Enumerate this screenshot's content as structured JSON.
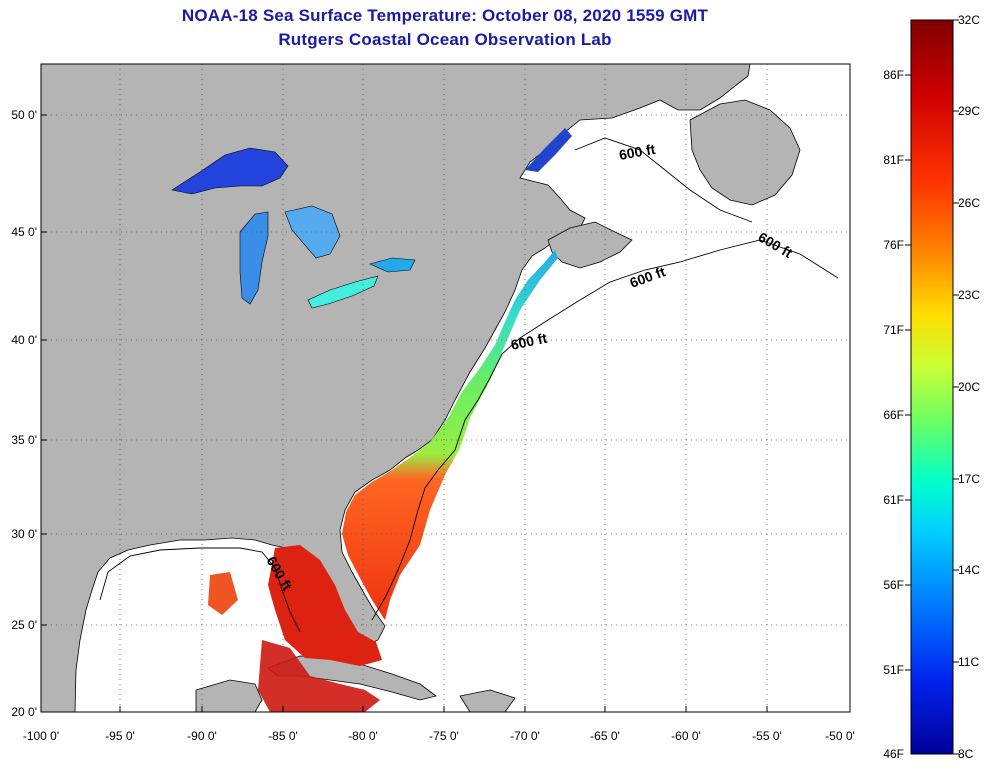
{
  "header": {
    "title": "NOAA-18 Sea Surface Temperature:  October 08, 2020 1559 GMT",
    "subtitle": "Rutgers Coastal Ocean Observation Lab"
  },
  "map": {
    "lon_ticks": [
      "-100 0'",
      "-95 0'",
      "-90 0'",
      "-85 0'",
      "-80 0'",
      "-75 0'",
      "-70 0'",
      "-65 0'",
      "-60 0'",
      "-55 0'",
      "-50 0'"
    ],
    "lat_ticks": [
      "50 0'",
      "45 0'",
      "40 0'",
      "35 0'",
      "30 0'",
      "25 0'",
      "20 0'"
    ],
    "contour_label": "600 ft",
    "colors": {
      "land": "#b4b4b4",
      "ocean": "#ffffff",
      "grid": "#555555"
    }
  },
  "colorbar": {
    "celsius": [
      "32C",
      "29C",
      "26C",
      "23C",
      "20C",
      "17C",
      "14C",
      "11C",
      "8C"
    ],
    "fahrenheit": [
      "86F",
      "81F",
      "76F",
      "71F",
      "66F",
      "61F",
      "56F",
      "51F",
      "46F"
    ],
    "gradient": [
      "#800000",
      "#cc0000",
      "#ff3300",
      "#ff8800",
      "#ffcc00",
      "#ccff33",
      "#66ff66",
      "#00ffcc",
      "#00ccff",
      "#0077ff",
      "#0022ee",
      "#000099"
    ]
  }
}
